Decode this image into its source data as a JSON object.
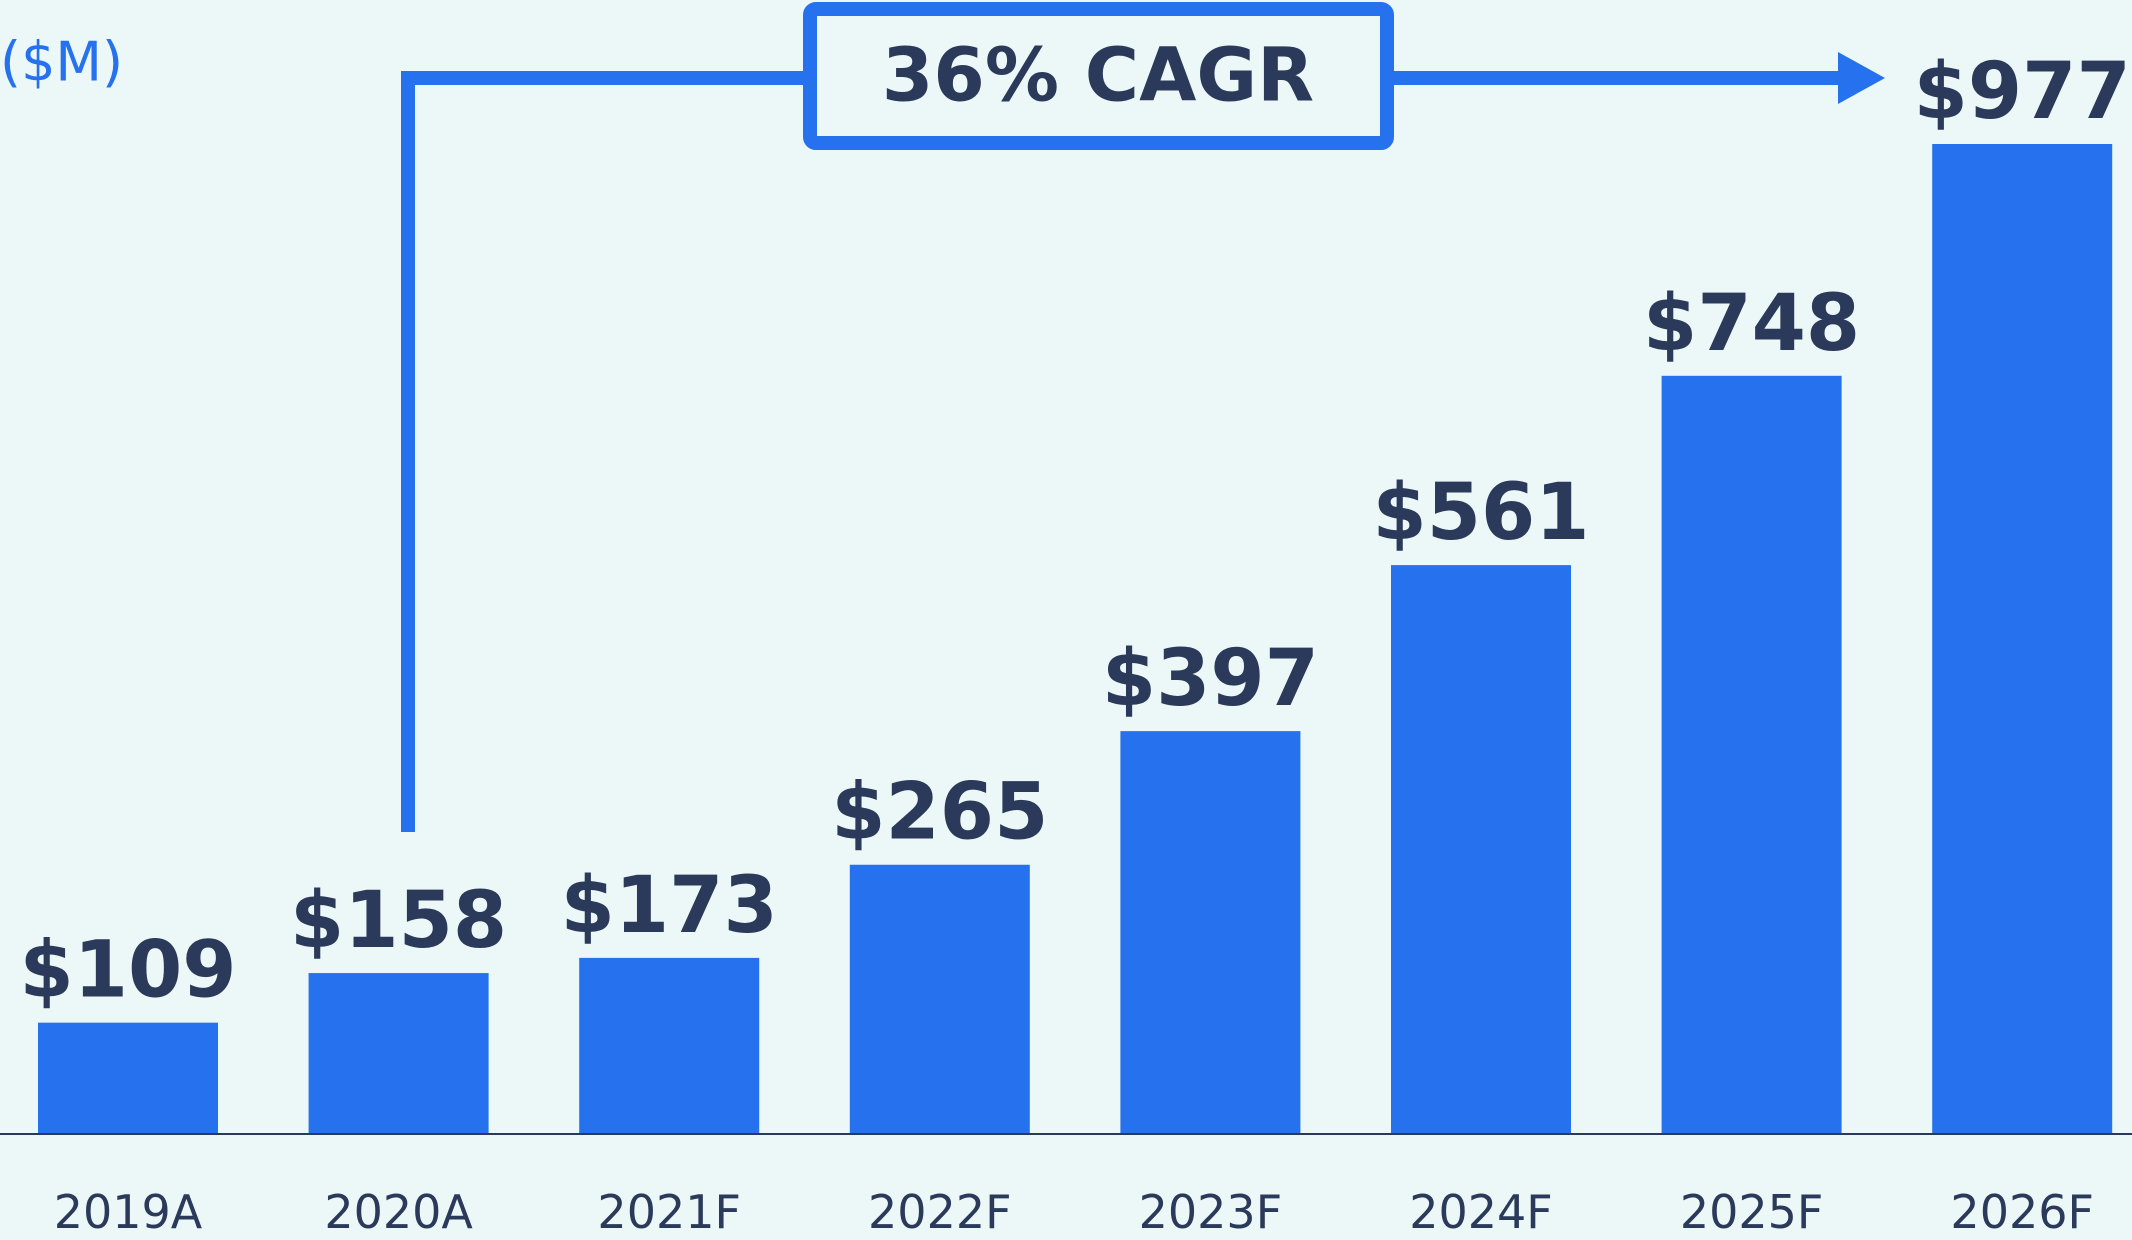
{
  "chart_data": {
    "type": "bar",
    "unit_label": "($M)",
    "annotation": "36% CAGR",
    "categories": [
      "2019A",
      "2020A",
      "2021F",
      "2022F",
      "2023F",
      "2024F",
      "2025F",
      "2026F"
    ],
    "values": [
      109,
      158,
      173,
      265,
      397,
      561,
      748,
      977
    ],
    "value_labels": [
      "$109",
      "$158",
      "$173",
      "$265",
      "$397",
      "$561",
      "$748",
      "$977"
    ],
    "color": "#2671ed"
  }
}
